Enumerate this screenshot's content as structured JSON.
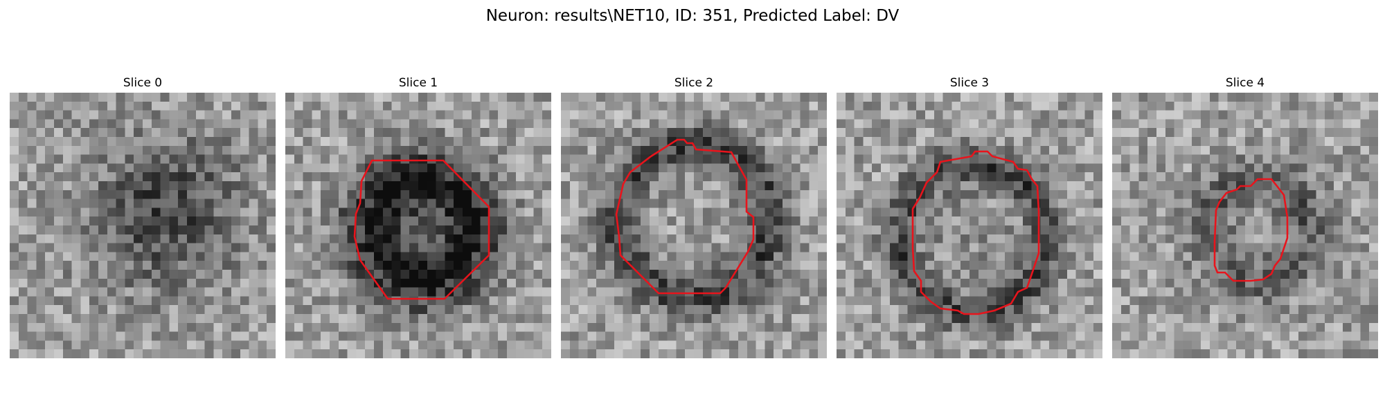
{
  "figure": {
    "title": "Neuron: results\\NET10, ID: 351, Predicted Label: DV"
  },
  "colors": {
    "contour": "#e8141c",
    "colormap": "gray"
  },
  "panels": [
    {
      "title": "Slice 0",
      "has_contour": false
    },
    {
      "title": "Slice 1",
      "has_contour": true
    },
    {
      "title": "Slice 2",
      "has_contour": true
    },
    {
      "title": "Slice 3",
      "has_contour": true
    },
    {
      "title": "Slice 4",
      "has_contour": true
    }
  ]
}
